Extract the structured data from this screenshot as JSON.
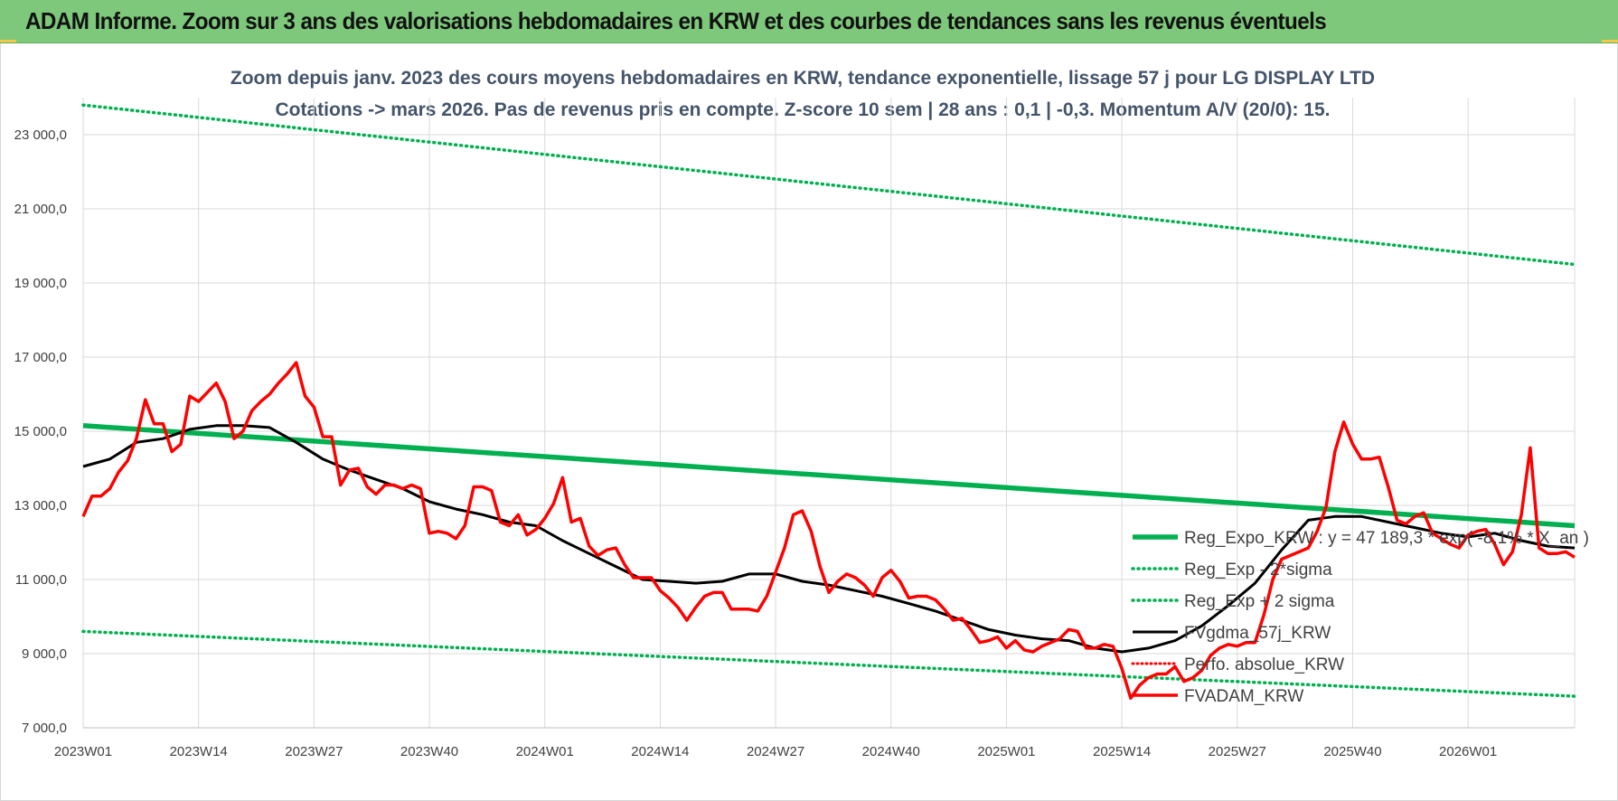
{
  "banner": {
    "title": "ADAM Informe. Zoom sur 3 ans des valorisations hebdomadaires en KRW et des courbes de tendances sans les revenus éventuels"
  },
  "colors": {
    "banner_bg": "#7dc87a",
    "trend": "#00b050",
    "smooth": "#000000",
    "price": "#ff0000",
    "perf": "#ff0000",
    "grid": "#d9d9d9",
    "subtitle": "#44546a"
  },
  "chart_data": {
    "type": "line",
    "title_lines": [
      "Zoom depuis janv. 2023 des cours moyens hebdomadaires en KRW, tendance exponentielle, lissage 57 j pour LG DISPLAY LTD",
      "Cotations -> mars 2026. Pas de revenus pris en compte. Z-score 10 sem | 28 ans : 0,1 | -0,3. Momentum A/V (20/0): 15."
    ],
    "x_labels": [
      "2023W01",
      "2023W14",
      "2023W27",
      "2023W40",
      "2024W01",
      "2024W14",
      "2024W27",
      "2024W40",
      "2025W01",
      "2025W14",
      "2025W27",
      "2025W40",
      "2026W01"
    ],
    "x_range_weeks": [
      0,
      168
    ],
    "ylim": [
      7000,
      24000
    ],
    "y_ticks": [
      "7 000,0",
      "9 000,0",
      "11 000,0",
      "13 000,0",
      "15 000,0",
      "17 000,0",
      "19 000,0",
      "21 000,0",
      "23 000,0"
    ],
    "y_tick_values": [
      7000,
      9000,
      11000,
      13000,
      15000,
      17000,
      19000,
      21000,
      23000
    ],
    "grid": true,
    "legend_position": "right",
    "series": [
      {
        "name": "Reg_Expo_KRW : y = 47 189,3 * exp( -8,1% * X_an )",
        "style": "trend",
        "x": [
          0,
          168
        ],
        "y": [
          15150,
          12450
        ]
      },
      {
        "name": "Reg_Exp - 2*sigma",
        "style": "dotted-green",
        "x": [
          0,
          168
        ],
        "y": [
          9600,
          7850
        ]
      },
      {
        "name": "Reg_Exp + 2 sigma",
        "style": "dotted-green",
        "x": [
          0,
          168
        ],
        "y": [
          23800,
          19500
        ]
      },
      {
        "name": "FVgdma_57j_KRW",
        "style": "smooth",
        "x": [
          0,
          3,
          6,
          9,
          12,
          15,
          18,
          21,
          24,
          27,
          30,
          33,
          36,
          39,
          42,
          45,
          48,
          51,
          54,
          57,
          60,
          63,
          66,
          69,
          72,
          75,
          78,
          81,
          84,
          87,
          90,
          93,
          96,
          99,
          102,
          105,
          108,
          111,
          114,
          117,
          120,
          123,
          126,
          129,
          132,
          135,
          138,
          141,
          144,
          147,
          150,
          153,
          156,
          159,
          162,
          165,
          168
        ],
        "y": [
          14050,
          14250,
          14700,
          14800,
          15050,
          15150,
          15150,
          15100,
          14700,
          14250,
          13950,
          13700,
          13450,
          13100,
          12900,
          12750,
          12550,
          12450,
          12050,
          11700,
          11350,
          11000,
          10950,
          10900,
          10950,
          11150,
          11150,
          10950,
          10850,
          10700,
          10550,
          10350,
          10150,
          9900,
          9650,
          9500,
          9400,
          9350,
          9150,
          9050,
          9150,
          9350,
          9750,
          10300,
          10900,
          11800,
          12600,
          12700,
          12700,
          12550,
          12400,
          12250,
          12150,
          12250,
          12050,
          11900,
          11850
        ]
      },
      {
        "name": "Perfo. absolue_KRW",
        "style": "dotted-red",
        "x": [],
        "y": []
      },
      {
        "name": "FVADAM_KRW",
        "style": "price",
        "x": [
          0,
          1,
          2,
          3,
          4,
          5,
          6,
          7,
          8,
          9,
          10,
          11,
          12,
          13,
          14,
          15,
          16,
          17,
          18,
          19,
          20,
          21,
          22,
          23,
          24,
          25,
          26,
          27,
          28,
          29,
          30,
          31,
          32,
          33,
          34,
          35,
          36,
          37,
          38,
          39,
          40,
          41,
          42,
          43,
          44,
          45,
          46,
          47,
          48,
          49,
          50,
          51,
          52,
          53,
          54,
          55,
          56,
          57,
          58,
          59,
          60,
          61,
          62,
          63,
          64,
          65,
          66,
          67,
          68,
          69,
          70,
          71,
          72,
          73,
          74,
          75,
          76,
          77,
          78,
          79,
          80,
          81,
          82,
          83,
          84,
          85,
          86,
          87,
          88,
          89,
          90,
          91,
          92,
          93,
          94,
          95,
          96,
          97,
          98,
          99,
          100,
          101,
          102,
          103,
          104,
          105,
          106,
          107,
          108,
          109,
          110,
          111,
          112,
          113,
          114,
          115,
          116,
          117,
          118,
          119,
          120,
          121,
          122,
          123,
          124,
          125,
          126,
          127,
          128,
          129,
          130,
          131,
          132,
          133,
          134,
          135,
          136,
          137,
          138,
          139,
          140,
          141,
          142,
          143,
          144,
          145,
          146,
          147,
          148,
          149,
          150,
          151,
          152,
          153,
          154,
          155,
          156,
          157,
          158,
          159,
          160,
          161,
          162,
          163,
          164,
          165,
          166,
          167,
          168
        ],
        "y": [
          12700,
          13250,
          13250,
          13450,
          13900,
          14200,
          14800,
          15850,
          15200,
          15200,
          14450,
          14650,
          15950,
          15800,
          16050,
          16300,
          15800,
          14800,
          15000,
          15550,
          15800,
          16000,
          16300,
          16550,
          16850,
          15950,
          15650,
          14850,
          14850,
          13550,
          13950,
          14000,
          13500,
          13300,
          13550,
          13550,
          13450,
          13550,
          13450,
          12250,
          12300,
          12250,
          12100,
          12450,
          13500,
          13500,
          13400,
          12550,
          12450,
          12750,
          12200,
          12350,
          12650,
          13050,
          13750,
          12550,
          12650,
          11900,
          11650,
          11800,
          11850,
          11400,
          11050,
          11050,
          11050,
          10700,
          10500,
          10250,
          9900,
          10250,
          10550,
          10650,
          10650,
          10200,
          10200,
          10200,
          10150,
          10550,
          11200,
          11850,
          12750,
          12850,
          12300,
          11350,
          10650,
          10950,
          11150,
          11050,
          10850,
          10550,
          11050,
          11250,
          10950,
          10500,
          10550,
          10550,
          10450,
          10200,
          9900,
          9950,
          9650,
          9300,
          9350,
          9450,
          9150,
          9350,
          9100,
          9050,
          9200,
          9300,
          9400,
          9650,
          9600,
          9150,
          9150,
          9250,
          9200,
          8600,
          7800,
          8150,
          8350,
          8450,
          8450,
          8650,
          8250,
          8350,
          8550,
          8950,
          9150,
          9250,
          9200,
          9300,
          9300,
          10050,
          11000,
          11550,
          11650,
          11750,
          11850,
          12300,
          12950,
          14450,
          15250,
          14650,
          14250,
          14250,
          14300,
          13500,
          12600,
          12500,
          12700,
          12800,
          12250,
          12100,
          11950,
          11850,
          12200,
          12300,
          12350,
          11950,
          11400,
          11750,
          12750,
          14550,
          11850,
          11700,
          11700,
          11750,
          11600
        ]
      }
    ]
  }
}
